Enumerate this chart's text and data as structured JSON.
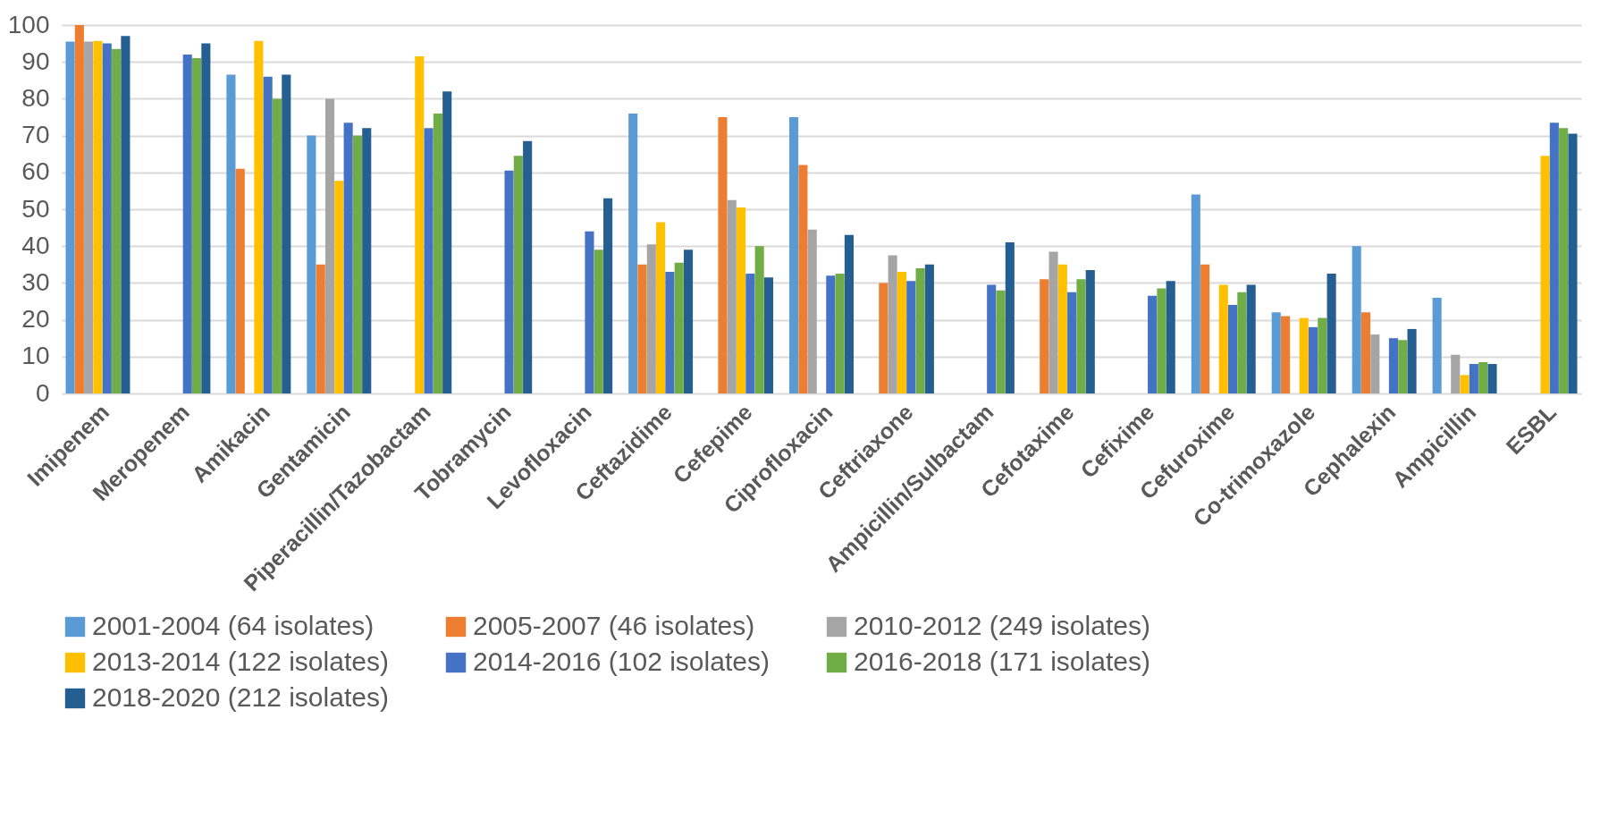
{
  "chart_data": {
    "type": "bar",
    "categories": [
      "Imipenem",
      "Meropenem",
      "Amikacin",
      "Gentamicin",
      "Piperacillin/Tazobactam",
      "Tobramycin",
      "Levofloxacin",
      "Ceftazidime",
      "Cefepime",
      "Ciprofloxacin",
      "Ceftriaxone",
      "Ampicillin/Sulbactam",
      "Cefotaxime",
      "Cefixime",
      "Cefuroxime",
      "Co-trimoxazole",
      "Cephalexin",
      "Ampicillin",
      "ESBL"
    ],
    "series": [
      {
        "name": "2001-2004 (64 isolates)",
        "color": "#5b9bd5",
        "values": [
          95.5,
          null,
          86.5,
          70,
          null,
          null,
          null,
          76,
          null,
          75,
          null,
          null,
          null,
          null,
          54,
          22,
          40,
          26,
          null
        ]
      },
      {
        "name": "2005-2007 (46 isolates)",
        "color": "#ed7d31",
        "values": [
          100,
          null,
          61,
          35,
          null,
          null,
          null,
          35,
          75,
          62,
          30,
          null,
          31,
          null,
          35,
          21,
          22,
          0,
          null
        ]
      },
      {
        "name": "2010-2012 (249 isolates)",
        "color": "#a5a5a5",
        "values": [
          95.5,
          null,
          null,
          80,
          null,
          null,
          null,
          40.5,
          52.5,
          44.5,
          37.5,
          null,
          38.5,
          null,
          null,
          null,
          16,
          10.5,
          null
        ]
      },
      {
        "name": "2013-2014 (122 isolates)",
        "color": "#ffc000",
        "values": [
          95.7,
          null,
          95.7,
          57.7,
          91.5,
          null,
          null,
          46.5,
          50.5,
          null,
          33,
          null,
          35,
          null,
          29.5,
          20.5,
          null,
          5,
          64.5
        ]
      },
      {
        "name": "2014-2016 (102 isolates)",
        "color": "#4472c4",
        "values": [
          95,
          92,
          86,
          73.5,
          72,
          60.5,
          44,
          33,
          32.5,
          32,
          30.5,
          29.5,
          27.5,
          26.5,
          24,
          18,
          15,
          8,
          73.5
        ]
      },
      {
        "name": "2016-2018 (171 isolates)",
        "color": "#70ad47",
        "values": [
          93.5,
          91,
          80,
          70,
          76,
          64.5,
          39,
          35.5,
          40,
          32.5,
          34,
          28,
          31,
          28.5,
          27.5,
          20.5,
          14.5,
          8.5,
          72
        ]
      },
      {
        "name": "2018-2020 (212 isolates)",
        "color": "#255e91",
        "values": [
          97,
          95,
          86.5,
          72,
          82,
          68.5,
          53,
          39,
          31.5,
          43,
          35,
          41,
          33.5,
          30.5,
          29.5,
          32.5,
          17.5,
          8,
          70.5
        ]
      }
    ],
    "ylim": [
      0,
      100
    ],
    "yticks": [
      0,
      10,
      20,
      30,
      40,
      50,
      60,
      70,
      80,
      90,
      100
    ],
    "grid": "y",
    "legend": "bottom"
  }
}
